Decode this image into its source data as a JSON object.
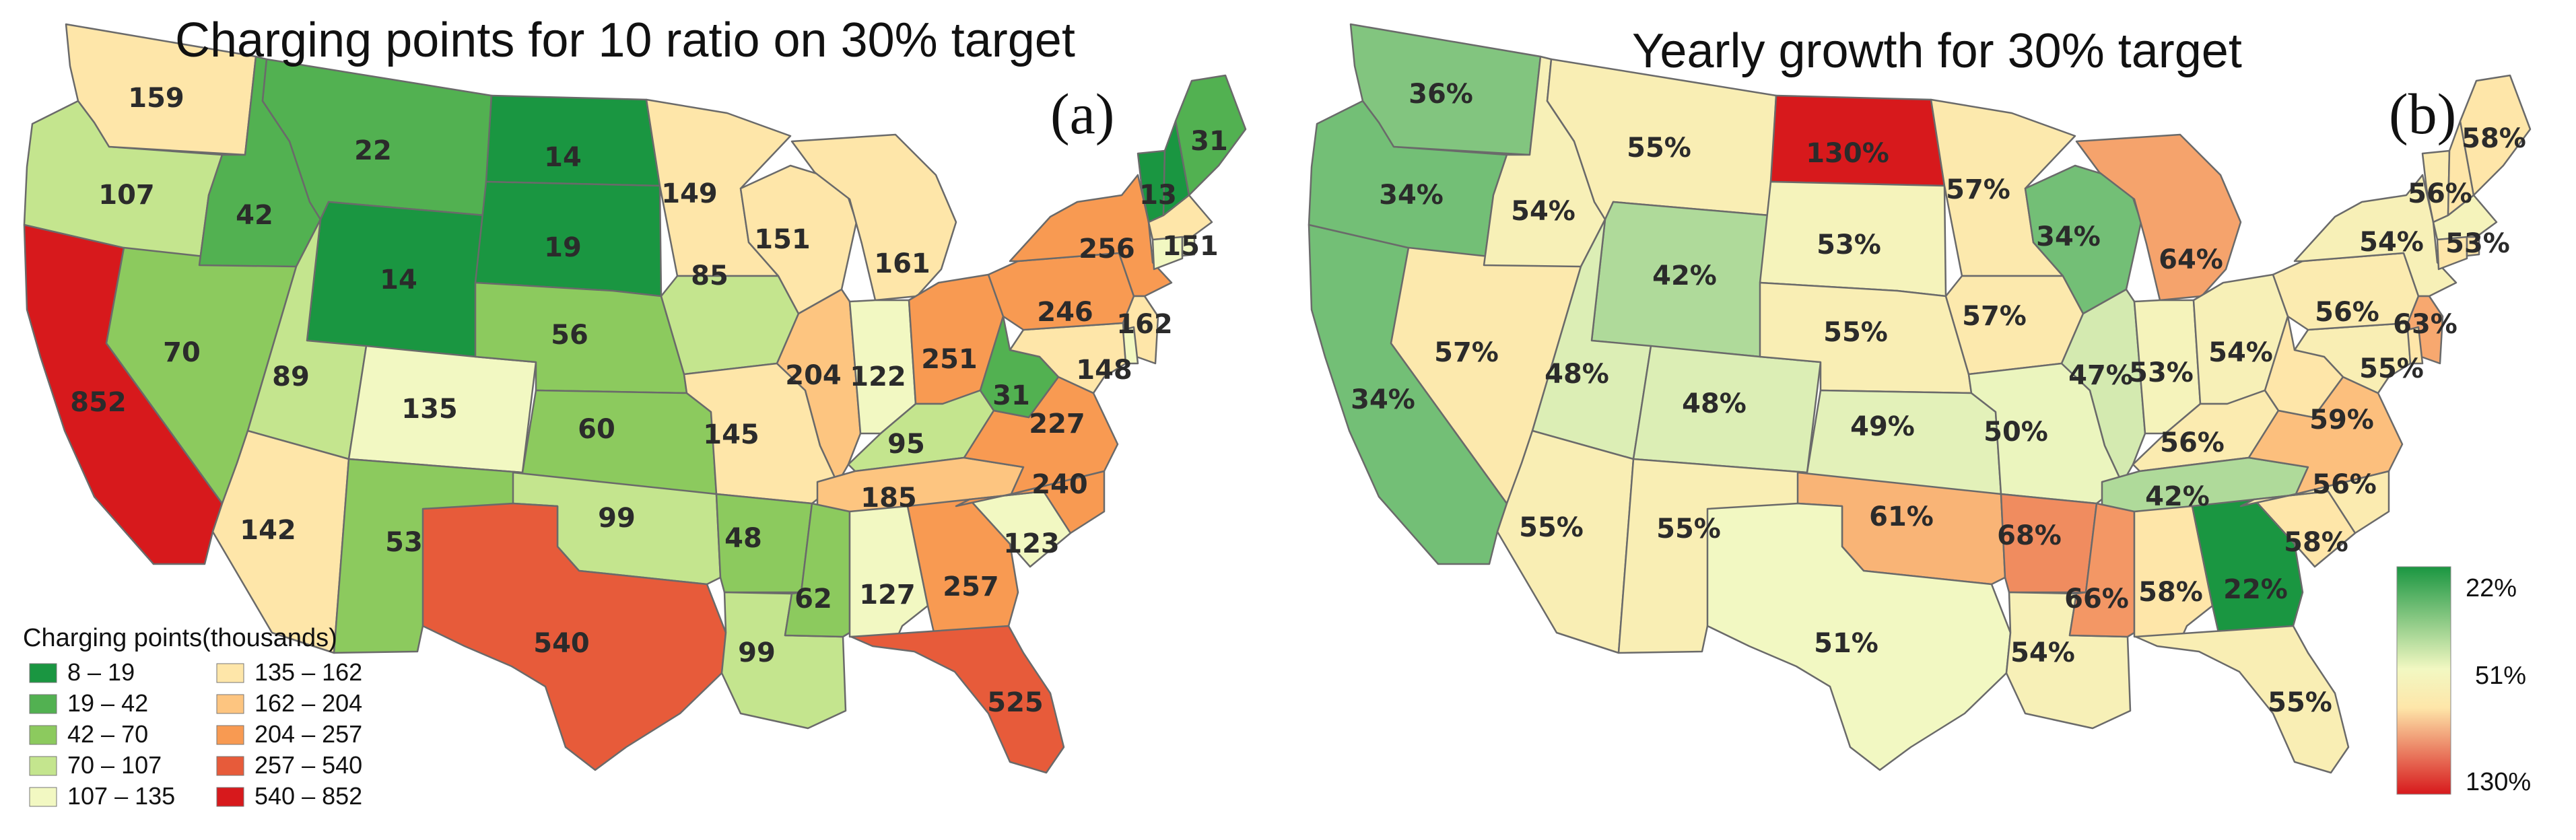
{
  "panel_a": {
    "title": "Charging points for 10 ratio on 30% target",
    "tag": "(a)",
    "legend_title": "Charging points(thousands)",
    "legend": [
      {
        "label": "8 – 19",
        "color": "#1a9641"
      },
      {
        "label": "19 – 42",
        "color": "#52b151"
      },
      {
        "label": "42 – 70",
        "color": "#8cca5e"
      },
      {
        "label": "70 – 107",
        "color": "#c4e58e"
      },
      {
        "label": "107 – 135",
        "color": "#f2f8c2"
      },
      {
        "label": "135 – 162",
        "color": "#fee6a9"
      },
      {
        "label": "162 – 204",
        "color": "#fdc580"
      },
      {
        "label": "204 – 257",
        "color": "#f89a52"
      },
      {
        "label": "257 – 540",
        "color": "#e75b3a"
      },
      {
        "label": "540 – 852",
        "color": "#d7191c"
      }
    ],
    "states": {
      "WA": "159",
      "OR": "107",
      "CA": "852",
      "ID": "42",
      "NV": "70",
      "MT": "22",
      "WY": "14",
      "UT": "89",
      "AZ": "142",
      "CO": "135",
      "NM": "53",
      "ND": "14",
      "SD": "19",
      "NE": "56",
      "KS": "60",
      "OK": "99",
      "TX": "540",
      "MN": "149",
      "IA": "85",
      "MO": "145",
      "AR": "48",
      "LA": "99",
      "WI": "151",
      "IL": "204",
      "MI": "161",
      "IN": "122",
      "OH": "251",
      "KY": "95",
      "TN": "185",
      "MS": "62",
      "AL": "127",
      "GA": "257",
      "FL": "525",
      "SC": "123",
      "NC": "240",
      "VA": "227",
      "WV": "31",
      "PA": "246",
      "NY": "256",
      "VT": "13",
      "NH": "13",
      "ME": "31",
      "MA": "151",
      "RI": "",
      "CT": "",
      "NJ": "162",
      "DE": "",
      "MD": "148"
    }
  },
  "panel_b": {
    "title": "Yearly growth for 30% target",
    "tag": "(b)",
    "colorbar": {
      "top": "22%",
      "mid": "51%",
      "bottom": "130%",
      "colors": [
        "#1a9641",
        "#f2f8c2",
        "#fee6a9",
        "#d7191c"
      ]
    },
    "states": {
      "WA": "36%",
      "OR": "34%",
      "CA": "34%",
      "ID": "54%",
      "NV": "57%",
      "MT": "55%",
      "WY": "42%",
      "UT": "48%",
      "AZ": "55%",
      "CO": "48%",
      "NM": "55%",
      "ND": "130%",
      "SD": "53%",
      "NE": "55%",
      "KS": "49%",
      "OK": "61%",
      "TX": "51%",
      "MN": "57%",
      "IA": "57%",
      "MO": "50%",
      "AR": "68%",
      "LA": "54%",
      "WI": "34%",
      "IL": "47%",
      "MI": "64%",
      "IN": "53%",
      "OH": "54%",
      "KY": "56%",
      "TN": "42%",
      "MS": "66%",
      "AL": "58%",
      "GA": "22%",
      "FL": "55%",
      "SC": "58%",
      "NC": "56%",
      "VA": "59%",
      "WV": "",
      "PA": "56%",
      "NY": "54%",
      "VT": "56%",
      "NH": "",
      "ME": "58%",
      "MA": "53%",
      "RI": "",
      "CT": "",
      "NJ": "63%",
      "DE": "",
      "MD": "55%"
    }
  }
}
